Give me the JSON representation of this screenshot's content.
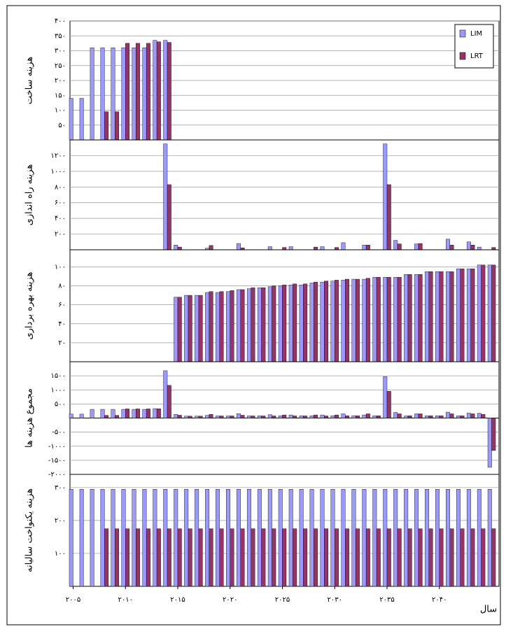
{
  "chart_data": [
    {
      "type": "bar",
      "ylabel": "هزینه ساخت",
      "x": [
        2005,
        2006,
        2007,
        2008,
        2009,
        2010,
        2011,
        2012,
        2013,
        2014,
        2015,
        2016,
        2017,
        2018,
        2019,
        2020,
        2021,
        2022,
        2023,
        2024,
        2025,
        2026,
        2027,
        2028,
        2029,
        2030,
        2031,
        2032,
        2033,
        2034,
        2035,
        2036,
        2037,
        2038,
        2039,
        2040,
        2041,
        2042,
        2043,
        2044,
        2045
      ],
      "xlim": [
        2004.7,
        2045.7
      ],
      "ylim": [
        0,
        400
      ],
      "yticks": [
        {
          "value": 50,
          "label": "۵۰"
        },
        {
          "value": 100,
          "label": "۱۰۰"
        },
        {
          "value": 150,
          "label": "۱۵۰"
        },
        {
          "value": 200,
          "label": "۲۰۰"
        },
        {
          "value": 250,
          "label": "۲۵۰"
        },
        {
          "value": 300,
          "label": "۳۰۰"
        },
        {
          "value": 350,
          "label": "۳۵۰"
        },
        {
          "value": 400,
          "label": "۴۰۰"
        }
      ],
      "grid": true,
      "legend": "top-right",
      "series": [
        {
          "name": "LIM",
          "color": "#9999ff",
          "values": [
            140,
            140,
            310,
            310,
            310,
            310,
            310,
            310,
            335,
            335,
            0,
            0,
            0,
            0,
            0,
            0,
            0,
            0,
            0,
            0,
            0,
            0,
            0,
            0,
            0,
            0,
            0,
            0,
            0,
            0,
            0,
            0,
            0,
            0,
            0,
            0,
            0,
            0,
            0,
            0,
            0
          ]
        },
        {
          "name": "LRT",
          "color": "#993366",
          "values": [
            0,
            0,
            0,
            95,
            95,
            325,
            325,
            325,
            330,
            328,
            0,
            0,
            0,
            0,
            0,
            0,
            0,
            0,
            0,
            0,
            0,
            0,
            0,
            0,
            0,
            0,
            0,
            0,
            0,
            0,
            0,
            0,
            0,
            0,
            0,
            0,
            0,
            0,
            0,
            0,
            0
          ]
        }
      ]
    },
    {
      "type": "bar",
      "ylabel": "هزینه راه اندازی",
      "x": [
        2005,
        2006,
        2007,
        2008,
        2009,
        2010,
        2011,
        2012,
        2013,
        2014,
        2015,
        2016,
        2017,
        2018,
        2019,
        2020,
        2021,
        2022,
        2023,
        2024,
        2025,
        2026,
        2027,
        2028,
        2029,
        2030,
        2031,
        2032,
        2033,
        2034,
        2035,
        2036,
        2037,
        2038,
        2039,
        2040,
        2041,
        2042,
        2043,
        2044,
        2045
      ],
      "xlim": [
        2004.7,
        2045.7
      ],
      "ylim": [
        0,
        1400
      ],
      "yticks": [
        {
          "value": 200,
          "label": "۲۰۰"
        },
        {
          "value": 400,
          "label": "۴۰۰"
        },
        {
          "value": 600,
          "label": "۶۰۰"
        },
        {
          "value": 800,
          "label": "۸۰۰"
        },
        {
          "value": 1000,
          "label": "۱۰۰۰"
        },
        {
          "value": 1200,
          "label": "۱۲۰۰"
        }
      ],
      "grid": true,
      "series": [
        {
          "color": "#9999ff",
          "values": [
            0,
            0,
            0,
            0,
            0,
            0,
            0,
            0,
            0,
            1350,
            60,
            0,
            0,
            20,
            0,
            0,
            80,
            0,
            0,
            40,
            0,
            40,
            0,
            0,
            40,
            0,
            90,
            0,
            60,
            0,
            1350,
            120,
            0,
            75,
            0,
            0,
            135,
            0,
            100,
            35,
            0
          ]
        },
        {
          "color": "#993366",
          "values": [
            0,
            0,
            0,
            0,
            0,
            0,
            0,
            0,
            0,
            830,
            35,
            0,
            0,
            55,
            0,
            0,
            25,
            0,
            0,
            0,
            30,
            0,
            0,
            35,
            0,
            30,
            0,
            0,
            60,
            0,
            830,
            75,
            0,
            80,
            0,
            0,
            60,
            0,
            60,
            0,
            30
          ]
        }
      ]
    },
    {
      "type": "bar",
      "ylabel": "هزینه بهره برداری",
      "x": [
        2005,
        2006,
        2007,
        2008,
        2009,
        2010,
        2011,
        2012,
        2013,
        2014,
        2015,
        2016,
        2017,
        2018,
        2019,
        2020,
        2021,
        2022,
        2023,
        2024,
        2025,
        2026,
        2027,
        2028,
        2029,
        2030,
        2031,
        2032,
        2033,
        2034,
        2035,
        2036,
        2037,
        2038,
        2039,
        2040,
        2041,
        2042,
        2043,
        2044,
        2045
      ],
      "xlim": [
        2004.7,
        2045.7
      ],
      "ylim": [
        0,
        118
      ],
      "yticks": [
        {
          "value": 20,
          "label": "۲۰"
        },
        {
          "value": 40,
          "label": "۴۰"
        },
        {
          "value": 60,
          "label": "۶۰"
        },
        {
          "value": 80,
          "label": "۸۰"
        },
        {
          "value": 100,
          "label": "۱۰۰"
        }
      ],
      "grid": true,
      "series": [
        {
          "color": "#9999ff",
          "values": [
            0,
            0,
            0,
            0,
            0,
            0,
            0,
            0,
            0,
            0,
            68,
            70,
            70,
            73,
            73,
            74,
            76,
            77,
            78,
            79,
            80,
            81,
            81,
            83,
            84,
            85,
            86,
            87,
            87,
            89,
            89,
            89,
            92,
            92,
            95,
            95,
            95,
            98,
            98,
            102,
            102
          ]
        },
        {
          "color": "#993366",
          "values": [
            0,
            0,
            0,
            0,
            0,
            0,
            0,
            0,
            0,
            0,
            68,
            70,
            70,
            74,
            74,
            75,
            76,
            78,
            78,
            80,
            81,
            82,
            82,
            84,
            85,
            86,
            87,
            87,
            88,
            89,
            89,
            89,
            92,
            92,
            95,
            95,
            95,
            98,
            98,
            102,
            102
          ]
        }
      ]
    },
    {
      "type": "bar",
      "ylabel": "مجموع هزینه ها",
      "x": [
        2005,
        2006,
        2007,
        2008,
        2009,
        2010,
        2011,
        2012,
        2013,
        2014,
        2015,
        2016,
        2017,
        2018,
        2019,
        2020,
        2021,
        2022,
        2023,
        2024,
        2025,
        2026,
        2027,
        2028,
        2029,
        2030,
        2031,
        2032,
        2033,
        2034,
        2035,
        2036,
        2037,
        2038,
        2039,
        2040,
        2041,
        2042,
        2043,
        2044,
        2045
      ],
      "xlim": [
        2004.7,
        2045.7
      ],
      "ylim": [
        -2000,
        2000
      ],
      "yticks": [
        {
          "value": -2000,
          "label": "-۲۰۰۰"
        },
        {
          "value": -1500,
          "label": "-۱۵۰۰"
        },
        {
          "value": -1000,
          "label": "-۱۰۰۰"
        },
        {
          "value": -500,
          "label": "-۵۰۰"
        },
        {
          "value": 500,
          "label": "۵۰۰"
        },
        {
          "value": 1000,
          "label": "۱۰۰۰"
        },
        {
          "value": 1500,
          "label": "۱۵۰۰"
        }
      ],
      "grid": true,
      "series": [
        {
          "color": "#9999ff",
          "values": [
            140,
            140,
            310,
            310,
            310,
            310,
            310,
            310,
            335,
            1680,
            130,
            70,
            70,
            95,
            75,
            75,
            155,
            75,
            80,
            120,
            80,
            110,
            80,
            80,
            110,
            80,
            150,
            85,
            110,
            80,
            1470,
            200,
            75,
            150,
            80,
            80,
            210,
            80,
            175,
            170,
            -1750
          ]
        },
        {
          "color": "#993366",
          "values": [
            0,
            0,
            0,
            95,
            95,
            325,
            325,
            325,
            330,
            1160,
            100,
            70,
            70,
            130,
            75,
            75,
            100,
            75,
            75,
            75,
            110,
            75,
            75,
            110,
            75,
            110,
            80,
            80,
            150,
            80,
            950,
            150,
            80,
            150,
            80,
            80,
            150,
            80,
            150,
            130,
            -1150
          ]
        }
      ]
    },
    {
      "type": "bar",
      "ylabel": "هزینه یکنواخت سالیانه",
      "xlabel": "سال",
      "x": [
        2005,
        2006,
        2007,
        2008,
        2009,
        2010,
        2011,
        2012,
        2013,
        2014,
        2015,
        2016,
        2017,
        2018,
        2019,
        2020,
        2021,
        2022,
        2023,
        2024,
        2025,
        2026,
        2027,
        2028,
        2029,
        2030,
        2031,
        2032,
        2033,
        2034,
        2035,
        2036,
        2037,
        2038,
        2039,
        2040,
        2041,
        2042,
        2043,
        2044,
        2045
      ],
      "xlim": [
        2004.7,
        2045.7
      ],
      "ylim": [
        0,
        340
      ],
      "yticks": [
        {
          "value": 100,
          "label": "۱۰۰"
        },
        {
          "value": 200,
          "label": "۲۰۰"
        },
        {
          "value": 300,
          "label": "۳۰۰"
        }
      ],
      "xticks": [
        {
          "value": 2005,
          "label": "۲۰۰۵"
        },
        {
          "value": 2010,
          "label": "۲۰۱۰"
        },
        {
          "value": 2015,
          "label": "۲۰۱۵"
        },
        {
          "value": 2020,
          "label": "۲۰۲۰"
        },
        {
          "value": 2025,
          "label": "۲۰۲۵"
        },
        {
          "value": 2030,
          "label": "۲۰۳۰"
        },
        {
          "value": 2035,
          "label": "۲۰۳۵"
        },
        {
          "value": 2040,
          "label": "۲۰۴۰"
        }
      ],
      "grid": true,
      "series": [
        {
          "color": "#9999ff",
          "values": [
            295,
            295,
            295,
            295,
            295,
            295,
            295,
            295,
            295,
            295,
            295,
            295,
            295,
            295,
            295,
            295,
            295,
            295,
            295,
            295,
            295,
            295,
            295,
            295,
            295,
            295,
            295,
            295,
            295,
            295,
            295,
            295,
            295,
            295,
            295,
            295,
            295,
            295,
            295,
            295,
            295
          ]
        },
        {
          "color": "#993366",
          "values": [
            0,
            0,
            0,
            175,
            175,
            175,
            175,
            175,
            175,
            175,
            175,
            175,
            175,
            175,
            175,
            175,
            175,
            175,
            175,
            175,
            175,
            175,
            175,
            175,
            175,
            175,
            175,
            175,
            175,
            175,
            175,
            175,
            175,
            175,
            175,
            175,
            175,
            175,
            175,
            175,
            175
          ]
        }
      ]
    }
  ]
}
